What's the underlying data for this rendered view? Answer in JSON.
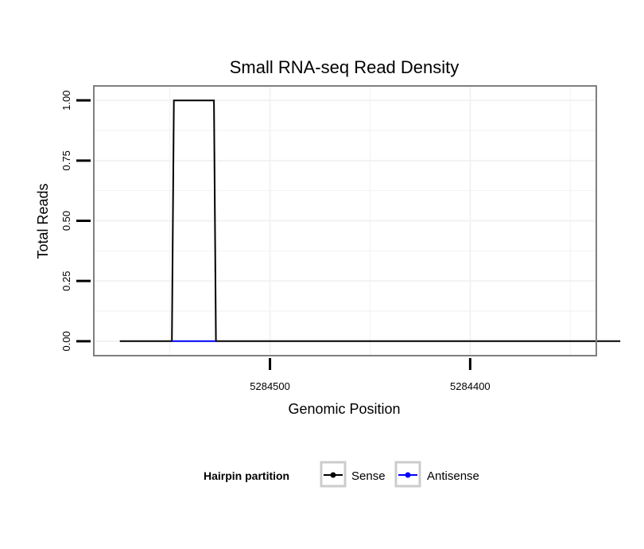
{
  "chart_data": {
    "type": "line",
    "title": "Small RNA-seq Read Density",
    "xlabel": "Genomic Position",
    "ylabel": "Total Reads",
    "x_reversed": true,
    "xlim": [
      5284588,
      5284337
    ],
    "ylim": [
      -0.06,
      1.06
    ],
    "x_ticks": [
      5284500,
      5284400
    ],
    "x_tick_labels": [
      "5284500",
      "5284400"
    ],
    "y_ticks": [
      0,
      0.25,
      0.5,
      0.75,
      1.0
    ],
    "y_tick_labels": [
      "0.00",
      "0.25",
      "0.50",
      "0.75",
      "1.00"
    ],
    "grid": true,
    "legend": {
      "title": "Hairpin partition",
      "position": "bottom",
      "entries": [
        "Sense",
        "Antisense"
      ]
    },
    "series": [
      {
        "name": "Sense",
        "color": "#000000",
        "x": [
          5284575,
          5284549,
          5284548,
          5284528,
          5284527,
          5284325
        ],
        "y": [
          0,
          0,
          1,
          1,
          0,
          0
        ]
      },
      {
        "name": "Antisense",
        "color": "#0000ff",
        "x": [
          5284549,
          5284527
        ],
        "y": [
          0,
          0
        ]
      }
    ]
  }
}
